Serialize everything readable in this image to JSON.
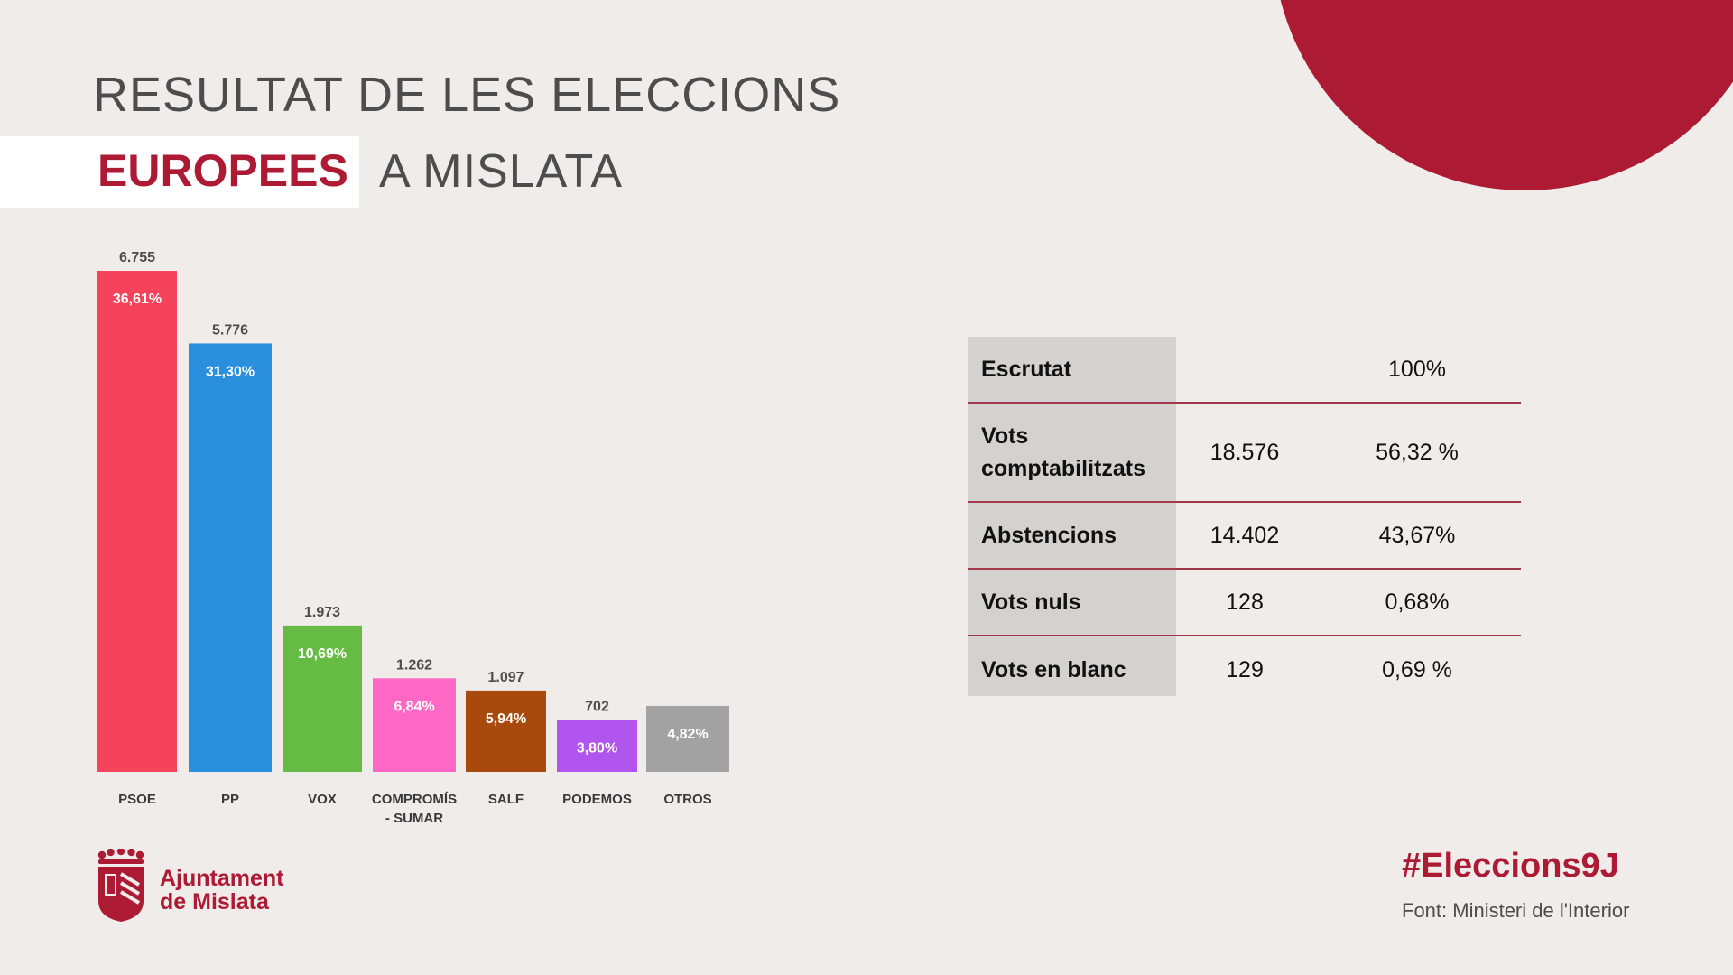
{
  "header": {
    "title_line1": "RESULTAT DE LES ELECCIONS",
    "title_highlight": "EUROPEES",
    "title_rest": "A MISLATA"
  },
  "chart_data": {
    "type": "bar",
    "categories": [
      [
        "PSOE"
      ],
      [
        "PP"
      ],
      [
        "VOX"
      ],
      [
        "COMPROMÍS",
        "- SUMAR"
      ],
      [
        "SALF"
      ],
      [
        "PODEMOS"
      ],
      [
        "OTROS"
      ]
    ],
    "values": [
      6755,
      5776,
      1973,
      1262,
      1097,
      702,
      889
    ],
    "value_labels": [
      "6.755",
      "5.776",
      "1.973",
      "1.262",
      "1.097",
      "702",
      ""
    ],
    "percent_labels": [
      "36,61%",
      "31,30%",
      "10,69%",
      "6,84%",
      "5,94%",
      "3,80%",
      "4,82%"
    ],
    "colors": [
      "#f5435c",
      "#2a8fdc",
      "#66bb44",
      "#ff69c5",
      "#a84a0d",
      "#b055ee",
      "#a2a2a2"
    ],
    "ylim": [
      0,
      6755
    ],
    "grid": false,
    "legend": "none"
  },
  "stats": {
    "rows": [
      {
        "label": [
          "Escrutat"
        ],
        "count": "",
        "percent": "100%"
      },
      {
        "label": [
          "Vots",
          "comptabilitzats"
        ],
        "count": "18.576",
        "percent": "56,32 %"
      },
      {
        "label": [
          "Abstencions"
        ],
        "count": "14.402",
        "percent": "43,67%"
      },
      {
        "label": [
          "Vots nuls"
        ],
        "count": "128",
        "percent": "0,68%"
      },
      {
        "label": [
          "Vots en blanc"
        ],
        "count": "129",
        "percent": "0,69 %"
      }
    ]
  },
  "footer": {
    "logo_line1": "Ajuntament",
    "logo_line2": "de Mislata",
    "hashtag": "#Eleccions9J",
    "source": "Font: Ministeri de l'Interior"
  },
  "colors": {
    "accent": "#ad1a34",
    "background": "#efecea",
    "stats_label_bg": "#d3d2d1"
  }
}
